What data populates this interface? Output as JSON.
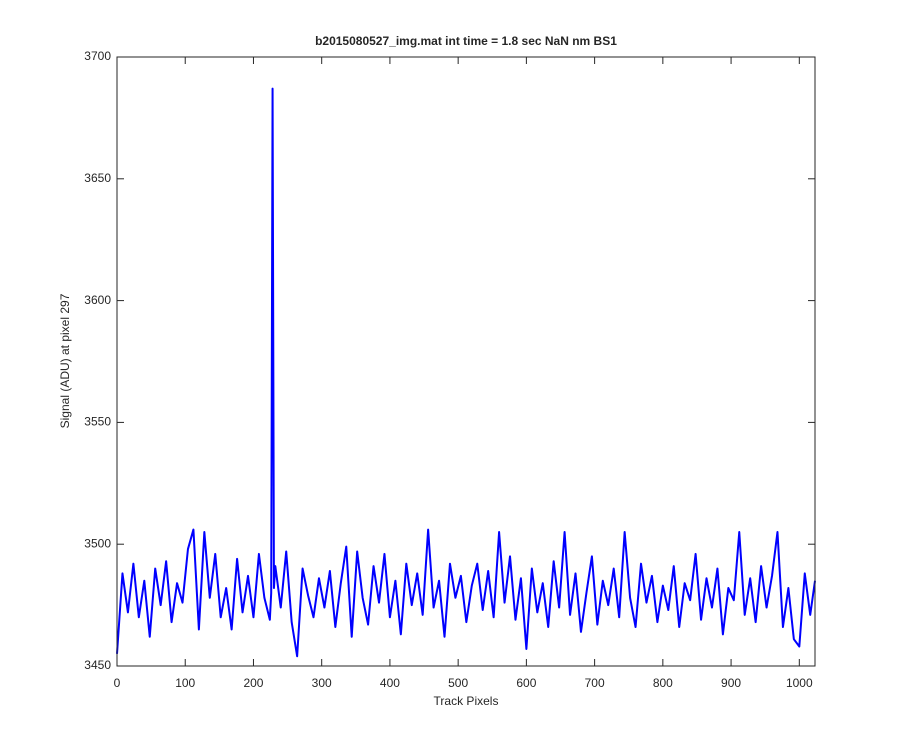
{
  "chart_data": {
    "type": "line",
    "title": "b2015080527_img.mat int time = 1.8 sec  NaN nm BS1",
    "x_label": "Track Pixels",
    "y_label": "Signal (ADU) at pixel 297",
    "color": "#0000ff",
    "xlim": [
      0,
      1023
    ],
    "ylim": [
      3450,
      3700
    ],
    "xticks": [
      0,
      100,
      200,
      300,
      400,
      500,
      600,
      700,
      800,
      900,
      1000
    ],
    "yticks": [
      3450,
      3500,
      3550,
      3600,
      3650,
      3700
    ],
    "x": [
      0,
      8,
      16,
      24,
      32,
      40,
      48,
      56,
      64,
      72,
      80,
      88,
      96,
      104,
      112,
      120,
      128,
      136,
      144,
      152,
      160,
      168,
      176,
      184,
      192,
      200,
      208,
      216,
      224,
      226,
      228,
      230,
      232,
      240,
      248,
      256,
      264,
      272,
      280,
      288,
      296,
      304,
      312,
      320,
      328,
      336,
      344,
      352,
      360,
      368,
      376,
      384,
      392,
      400,
      408,
      416,
      424,
      432,
      440,
      448,
      456,
      464,
      472,
      480,
      488,
      496,
      504,
      512,
      520,
      528,
      536,
      544,
      552,
      560,
      568,
      576,
      584,
      592,
      600,
      608,
      616,
      624,
      632,
      640,
      648,
      656,
      664,
      672,
      680,
      688,
      696,
      704,
      712,
      720,
      728,
      736,
      744,
      752,
      760,
      768,
      776,
      784,
      792,
      800,
      808,
      816,
      824,
      832,
      840,
      848,
      856,
      864,
      872,
      880,
      888,
      896,
      904,
      912,
      920,
      928,
      936,
      944,
      952,
      960,
      968,
      976,
      984,
      992,
      1000,
      1008,
      1016,
      1023
    ],
    "values": [
      3455,
      3488,
      3472,
      3492,
      3470,
      3485,
      3462,
      3490,
      3475,
      3493,
      3468,
      3484,
      3476,
      3498,
      3506,
      3465,
      3505,
      3478,
      3496,
      3470,
      3482,
      3465,
      3494,
      3472,
      3487,
      3470,
      3496,
      3478,
      3469,
      3480,
      3687,
      3482,
      3491,
      3474,
      3497,
      3468,
      3454,
      3490,
      3479,
      3470,
      3486,
      3474,
      3489,
      3466,
      3484,
      3499,
      3462,
      3497,
      3478,
      3467,
      3491,
      3476,
      3496,
      3470,
      3485,
      3463,
      3492,
      3475,
      3488,
      3471,
      3506,
      3474,
      3485,
      3462,
      3492,
      3478,
      3487,
      3468,
      3483,
      3492,
      3473,
      3489,
      3470,
      3505,
      3476,
      3495,
      3469,
      3486,
      3457,
      3490,
      3472,
      3484,
      3466,
      3493,
      3474,
      3505,
      3471,
      3488,
      3464,
      3480,
      3495,
      3467,
      3485,
      3475,
      3490,
      3470,
      3505,
      3478,
      3466,
      3492,
      3476,
      3487,
      3468,
      3483,
      3473,
      3491,
      3466,
      3484,
      3477,
      3496,
      3469,
      3486,
      3474,
      3490,
      3463,
      3482,
      3477,
      3505,
      3471,
      3486,
      3468,
      3491,
      3474,
      3487,
      3505,
      3466,
      3482,
      3461,
      3458,
      3488,
      3471,
      3485
    ]
  }
}
